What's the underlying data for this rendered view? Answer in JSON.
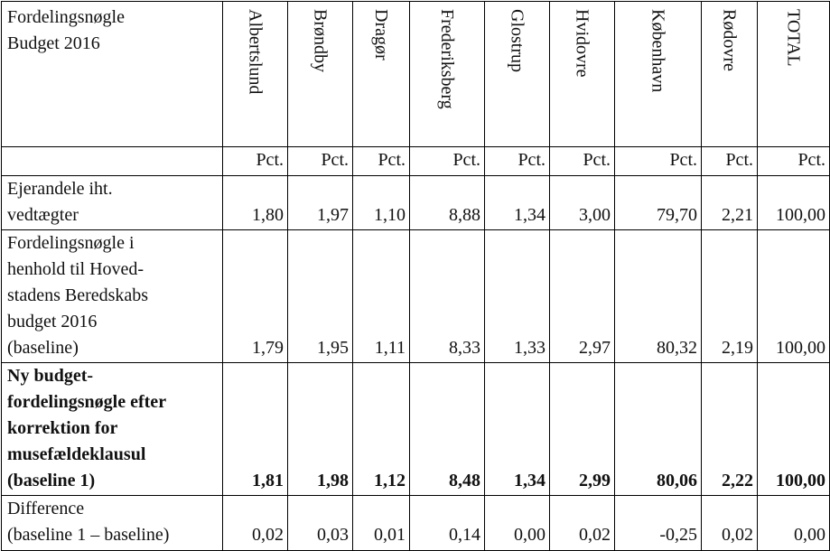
{
  "header": {
    "corner": [
      "Fordelingsnøgle",
      "Budget 2016"
    ],
    "municipalities": [
      "Albertslund",
      "Brøndby",
      "Dragør",
      "Frederiksberg",
      "Glostrup",
      "Hvidovre",
      "København",
      "Rødovre",
      "TOTAL"
    ],
    "unit": "Pct."
  },
  "rows": [
    {
      "label_lines": [
        "Ejerandele iht.",
        "vedtægter"
      ],
      "values": [
        "1,80",
        "1,97",
        "1,10",
        "8,88",
        "1,34",
        "3,00",
        "79,70",
        "2,21",
        "100,00"
      ],
      "bold": false
    },
    {
      "label_lines": [
        "Fordelingsnøgle i",
        "henhold til Hoved-",
        "stadens Beredskabs",
        "budget 2016",
        "(baseline)"
      ],
      "values": [
        "1,79",
        "1,95",
        "1,11",
        "8,33",
        "1,33",
        "2,97",
        "80,32",
        "2,19",
        "100,00"
      ],
      "bold": false
    },
    {
      "label_lines": [
        "Ny budget-",
        "fordelingsnøgle efter",
        "korrektion for",
        "musefældeklausul",
        "(baseline 1)"
      ],
      "values": [
        "1,81",
        "1,98",
        "1,12",
        "8,48",
        "1,34",
        "2,99",
        "80,06",
        "2,22",
        "100,00"
      ],
      "bold": true
    },
    {
      "label_lines": [
        "Difference",
        "(baseline 1 – baseline)"
      ],
      "values": [
        "0,02",
        "0,03",
        "0,01",
        "0,14",
        "0,00",
        "0,02",
        "-0,25",
        "0,02",
        "0,00"
      ],
      "bold": false
    }
  ]
}
